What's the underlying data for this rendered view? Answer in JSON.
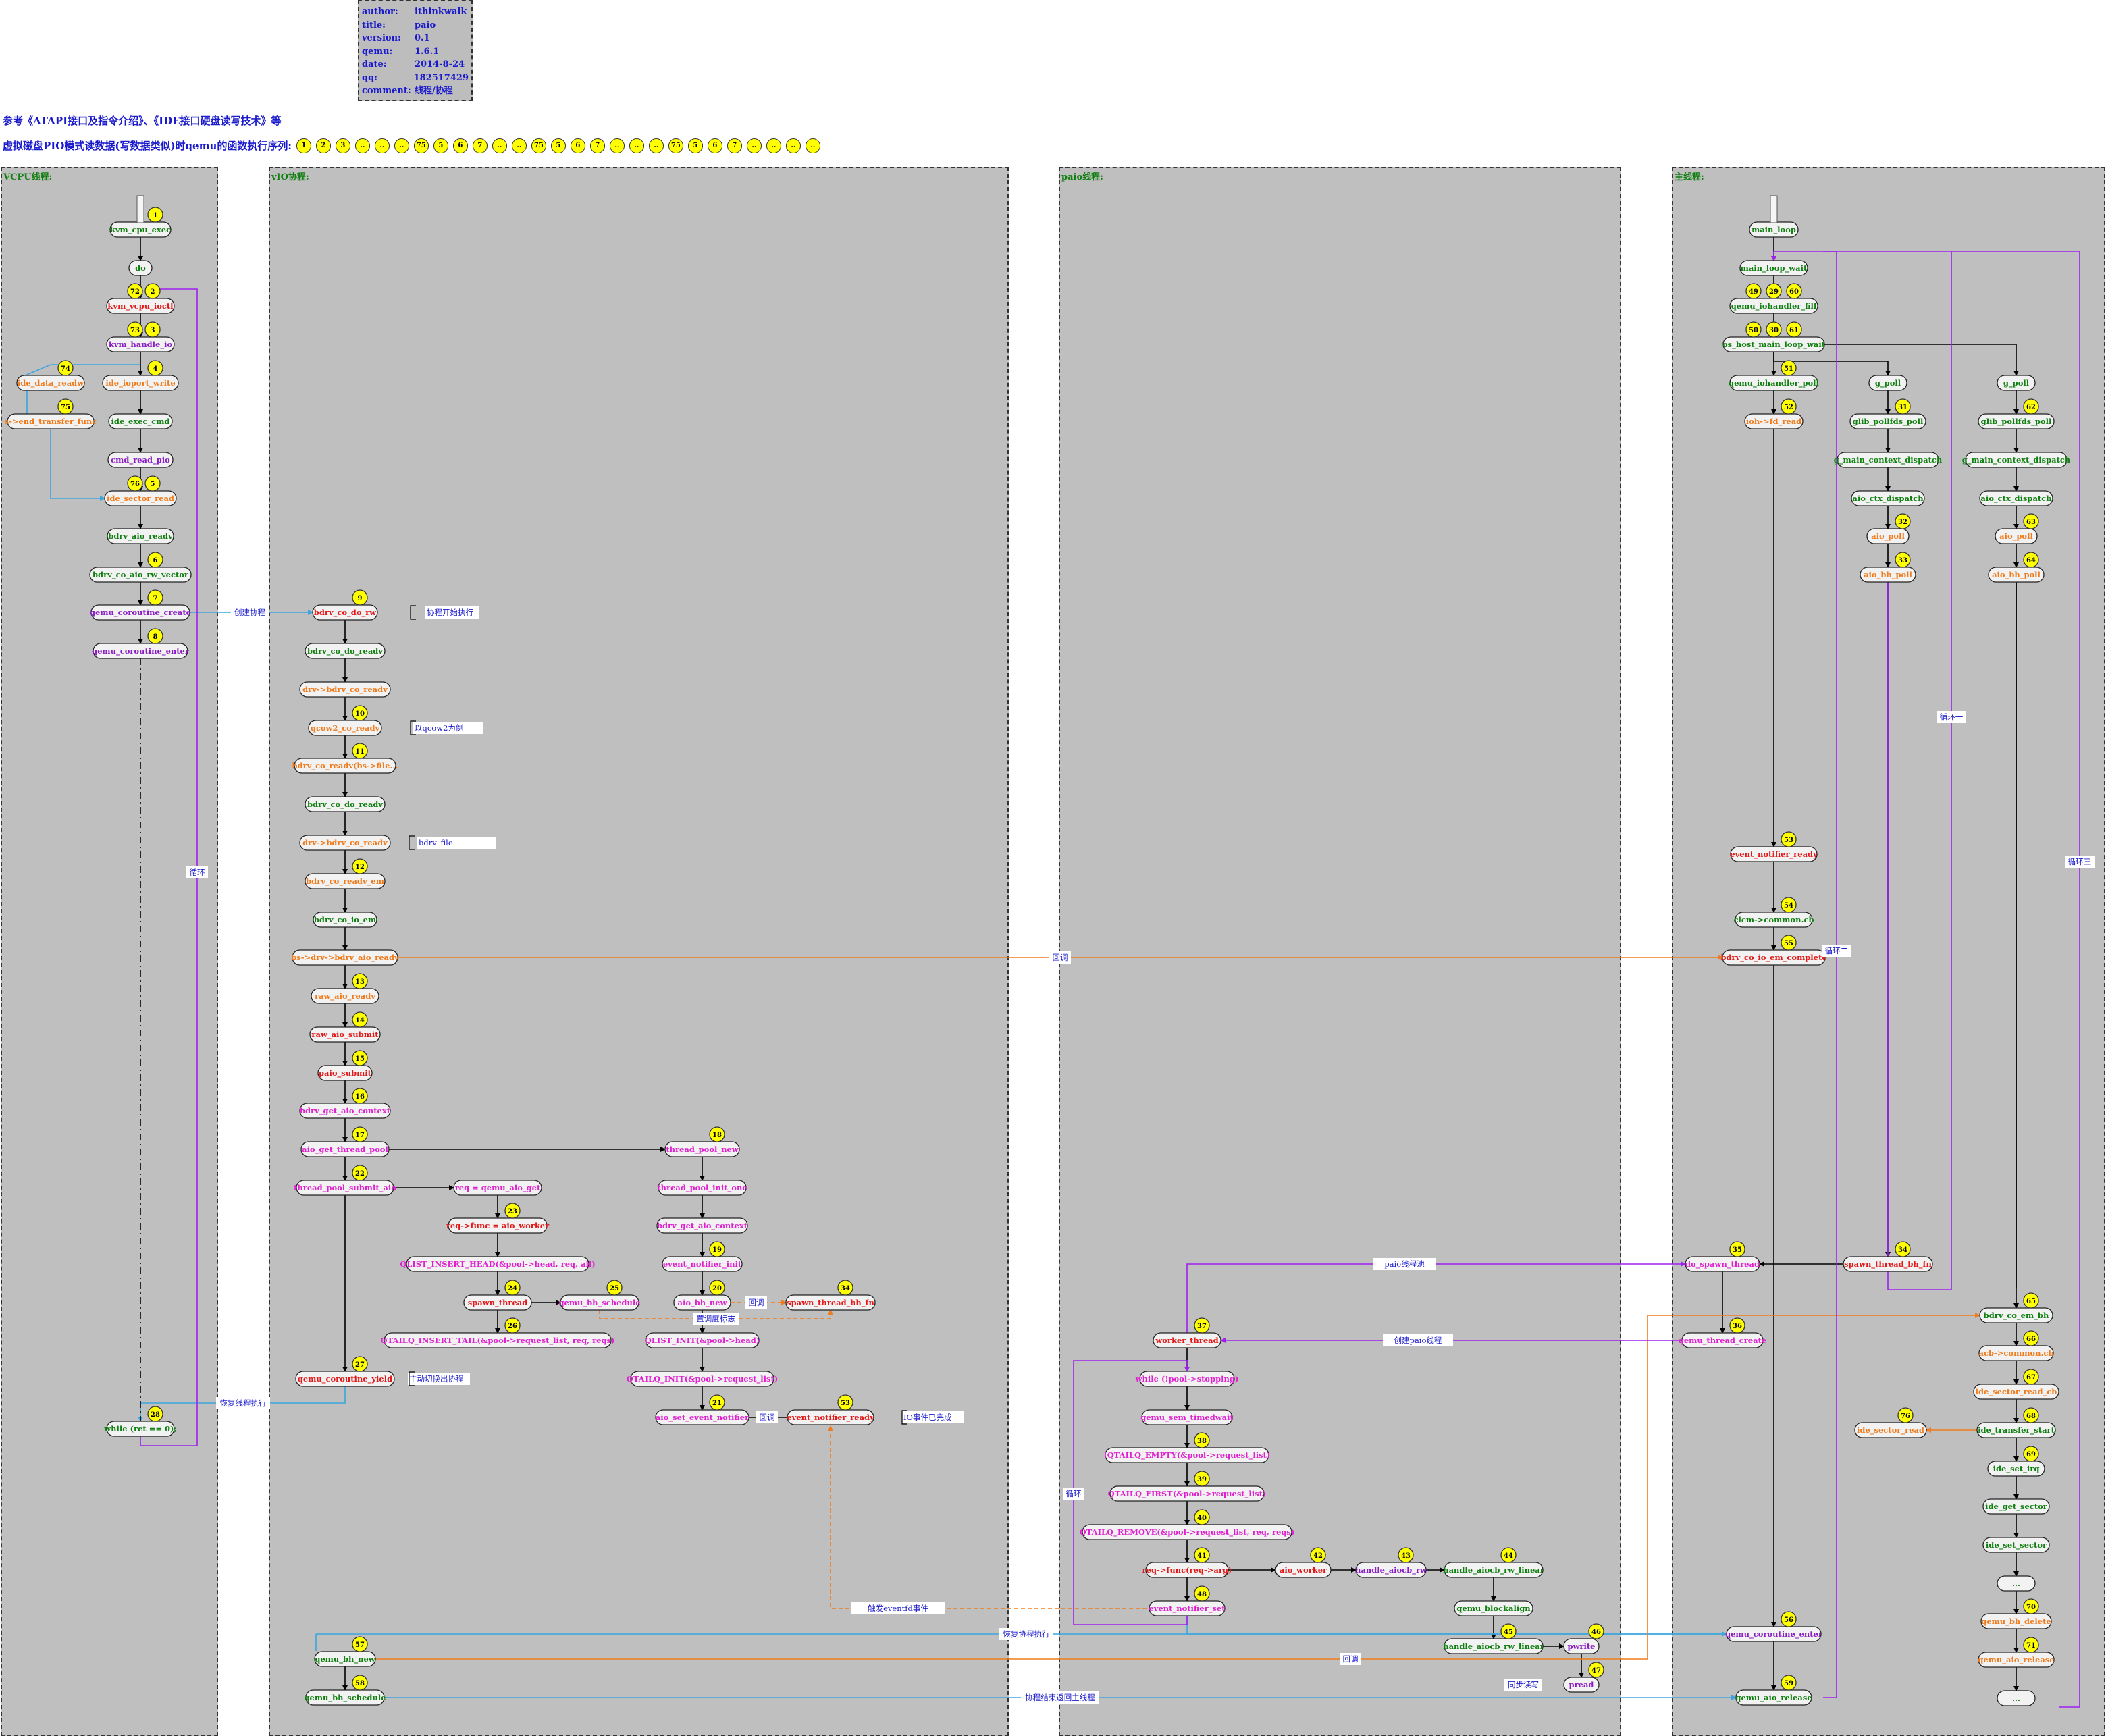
{
  "info": {
    "rows": [
      {
        "key": "author:",
        "value": "ithinkwalk"
      },
      {
        "key": "title:",
        "value": "paio"
      },
      {
        "key": "version:",
        "value": "0.1"
      },
      {
        "key": "qemu:",
        "value": "1.6.1"
      },
      {
        "key": "date:",
        "value": "2014-8-24"
      },
      {
        "key": "qq:",
        "value": "182517429"
      },
      {
        "key": "comment:",
        "value": "线程/协程"
      }
    ]
  },
  "reference_text": "参考《ATAPI接口及指令介绍》、《IDE接口硬盘读写技术》等",
  "sequence_label": "虚拟磁盘PIO模式读数据(写数据类似)时qemu的函数执行序列:",
  "sequence": [
    "1",
    "2",
    "3",
    "..",
    "..",
    "..",
    "75",
    "5",
    "6",
    "7",
    "..",
    "..",
    "75",
    "5",
    "6",
    "7",
    "..",
    "..",
    "..",
    "75",
    "5",
    "6",
    "7",
    "..",
    "..",
    "..",
    ".."
  ],
  "lanes": [
    {
      "id": "vcpu",
      "title": "VCPU线程:"
    },
    {
      "id": "vio",
      "title": "vIO协程:"
    },
    {
      "id": "paio",
      "title": "paio线程:"
    },
    {
      "id": "main",
      "title": "主线程:"
    }
  ],
  "colors": {
    "green": "#0f7f0f",
    "red": "#e31919",
    "orange": "#f07b1c",
    "purple": "#8a1ec4",
    "magenta": "#e01fd0",
    "blue": "#1a1acc",
    "cyan_edge": "#3aa6df",
    "badge": "#ffff00",
    "lane_bg": "#bfbfbf"
  },
  "nodes": [
    {
      "id": "kvm_cpu_exec",
      "text": "kvm_cpu_exec",
      "c": "green",
      "badge": "1"
    },
    {
      "id": "do",
      "text": "do",
      "c": "green"
    },
    {
      "id": "kvm_vcpu_ioctl",
      "text": "kvm_vcpu_ioctl",
      "c": "red",
      "badge": "2",
      "badge2": "72"
    },
    {
      "id": "kvm_handle_io",
      "text": "kvm_handle_io",
      "c": "purple",
      "badge": "3",
      "badge2": "73"
    },
    {
      "id": "ide_ioport_write",
      "text": "ide_ioport_write",
      "c": "orange",
      "badge": "4"
    },
    {
      "id": "ide_data_readw",
      "text": "ide_data_readw",
      "c": "orange",
      "badge": "74"
    },
    {
      "id": "s_end_transfer_func",
      "text": "s->end_transfer_func",
      "c": "orange",
      "badge": "75"
    },
    {
      "id": "ide_exec_cmd",
      "text": "ide_exec_cmd",
      "c": "green"
    },
    {
      "id": "cmd_read_pio",
      "text": "cmd_read_pio",
      "c": "purple"
    },
    {
      "id": "ide_sector_read",
      "text": "ide_sector_read",
      "c": "orange",
      "badge": "5",
      "badge2": "76"
    },
    {
      "id": "bdrv_aio_readv",
      "text": "bdrv_aio_readv",
      "c": "green"
    },
    {
      "id": "bdrv_co_aio_rw_vector",
      "text": "bdrv_co_aio_rw_vector",
      "c": "green",
      "badge": "6"
    },
    {
      "id": "qemu_coroutine_create",
      "text": "qemu_coroutine_create",
      "c": "purple",
      "badge": "7"
    },
    {
      "id": "qemu_coroutine_enter",
      "text": "qemu_coroutine_enter",
      "c": "purple",
      "badge": "8"
    },
    {
      "id": "while_ret",
      "text": "while (ret == 0);",
      "c": "green",
      "badge": "28"
    },
    {
      "id": "bdrv_co_do_rw",
      "text": "bdrv_co_do_rw",
      "c": "red",
      "badge": "9"
    },
    {
      "id": "bdrv_co_do_readv",
      "text": "bdrv_co_do_readv",
      "c": "green"
    },
    {
      "id": "drv_bdrv_co_readv",
      "text": "drv->bdrv_co_readv",
      "c": "orange"
    },
    {
      "id": "qcow2_co_readv",
      "text": "qcow2_co_readv",
      "c": "orange",
      "badge": "10"
    },
    {
      "id": "bdrv_co_readv_file",
      "text": "bdrv_co_readv(bs->file...",
      "c": "orange",
      "badge": "11"
    },
    {
      "id": "bdrv_co_do_readv2",
      "text": "bdrv_co_do_readv",
      "c": "green"
    },
    {
      "id": "drv_bdrv_co_readv2",
      "text": "drv->bdrv_co_readv",
      "c": "orange"
    },
    {
      "id": "bdrv_co_readv_em",
      "text": "bdrv_co_readv_em",
      "c": "orange",
      "badge": "12"
    },
    {
      "id": "bdrv_co_io_em",
      "text": "bdrv_co_io_em",
      "c": "green"
    },
    {
      "id": "bs_drv_bdrv_aio_readv",
      "text": "bs->drv->bdrv_aio_readv",
      "c": "orange"
    },
    {
      "id": "raw_aio_readv",
      "text": "raw_aio_readv",
      "c": "orange",
      "badge": "13"
    },
    {
      "id": "raw_aio_submit",
      "text": "raw_aio_submit",
      "c": "red",
      "badge": "14"
    },
    {
      "id": "paio_submit",
      "text": "paio_submit",
      "c": "red",
      "badge": "15"
    },
    {
      "id": "bdrv_get_aio_context",
      "text": "bdrv_get_aio_context",
      "c": "magenta",
      "badge": "16"
    },
    {
      "id": "aio_get_thread_pool",
      "text": "aio_get_thread_pool",
      "c": "magenta",
      "badge": "17"
    },
    {
      "id": "thread_pool_submit_aio",
      "text": "thread_pool_submit_aio",
      "c": "magenta",
      "badge": "22"
    },
    {
      "id": "req_qemu_aio_get",
      "text": "req = qemu_aio_get",
      "c": "magenta"
    },
    {
      "id": "req_func_aio_worker",
      "text": "req->func = aio_worker",
      "c": "red",
      "badge": "23"
    },
    {
      "id": "qlist_insert_head",
      "text": "QLIST_INSERT_HEAD(&pool->head, req, all)",
      "c": "magenta"
    },
    {
      "id": "spawn_thread",
      "text": "spawn_thread",
      "c": "red",
      "badge": "24"
    },
    {
      "id": "qemu_bh_schedule",
      "text": "qemu_bh_schedule",
      "c": "magenta",
      "badge": "25"
    },
    {
      "id": "qtailq_insert_tail",
      "text": "QTAILQ_INSERT_TAIL(&pool->request_list, req, reqs)",
      "c": "magenta",
      "badge": "26"
    },
    {
      "id": "qemu_coroutine_yield",
      "text": "qemu_coroutine_yield",
      "c": "red",
      "badge": "27"
    },
    {
      "id": "thread_pool_new",
      "text": "thread_pool_new",
      "c": "magenta",
      "badge": "18"
    },
    {
      "id": "thread_pool_init_one",
      "text": "thread_pool_init_one",
      "c": "magenta"
    },
    {
      "id": "bdrv_get_aio_context2",
      "text": "bdrv_get_aio_context",
      "c": "magenta"
    },
    {
      "id": "event_notifier_init",
      "text": "event_notifier_init",
      "c": "magenta",
      "badge": "19"
    },
    {
      "id": "aio_bh_new",
      "text": "aio_bh_new",
      "c": "magenta",
      "badge": "20"
    },
    {
      "id": "spawn_thread_bh_fn",
      "text": "spawn_thread_bh_fn",
      "c": "red",
      "badge": "34"
    },
    {
      "id": "qlist_init",
      "text": "QLIST_INIT(&pool->head)",
      "c": "magenta"
    },
    {
      "id": "qtailq_init",
      "text": "QTAILQ_INIT(&pool->request_list)",
      "c": "magenta"
    },
    {
      "id": "aio_set_event_notifier",
      "text": "aio_set_event_notifier",
      "c": "magenta",
      "badge": "21"
    },
    {
      "id": "event_notifier_ready",
      "text": "event_notifier_ready",
      "c": "red",
      "badge": "53"
    },
    {
      "id": "qemu_bh_new",
      "text": "qemu_bh_new",
      "c": "green",
      "badge": "57"
    },
    {
      "id": "qemu_bh_schedule2",
      "text": "qemu_bh_schedule",
      "c": "green",
      "badge": "58"
    },
    {
      "id": "worker_thread",
      "text": "worker_thread",
      "c": "red",
      "badge": "37"
    },
    {
      "id": "while_stopping",
      "text": "while (!pool->stopping)",
      "c": "magenta"
    },
    {
      "id": "qemu_sem_timedwait",
      "text": "qemu_sem_timedwait",
      "c": "magenta"
    },
    {
      "id": "qtailq_empty",
      "text": "!QTAILQ_EMPTY(&pool->request_list)",
      "c": "magenta",
      "badge": "38"
    },
    {
      "id": "qtailq_first",
      "text": "QTAILQ_FIRST(&pool->request_list)",
      "c": "magenta",
      "badge": "39"
    },
    {
      "id": "qtailq_remove",
      "text": "QTAILQ_REMOVE(&pool->request_list, req, reqs)",
      "c": "magenta",
      "badge": "40"
    },
    {
      "id": "req_func_arg",
      "text": "req->func(req->arg)",
      "c": "red",
      "badge": "41"
    },
    {
      "id": "aio_worker",
      "text": "aio_worker",
      "c": "red",
      "badge": "42"
    },
    {
      "id": "handle_aiocb_rw",
      "text": "handle_aiocb_rw",
      "c": "purple",
      "badge": "43"
    },
    {
      "id": "handle_aiocb_rw_linear",
      "text": "handle_aiocb_rw_linear",
      "c": "green",
      "badge": "44"
    },
    {
      "id": "qemu_blockalign",
      "text": "qemu_blockalign",
      "c": "green"
    },
    {
      "id": "handle_aiocb_rw_linear2",
      "text": "handle_aiocb_rw_linear",
      "c": "green",
      "badge": "45"
    },
    {
      "id": "pwrite",
      "text": "pwrite",
      "c": "purple",
      "badge": "46"
    },
    {
      "id": "pread",
      "text": "pread",
      "c": "purple",
      "badge": "47"
    },
    {
      "id": "event_notifier_set",
      "text": "event_notifier_set",
      "c": "magenta",
      "badge": "48"
    },
    {
      "id": "main_loop",
      "text": "main_loop",
      "c": "green"
    },
    {
      "id": "main_loop_wait",
      "text": "main_loop_wait",
      "c": "green"
    },
    {
      "id": "qemu_iohandler_fill",
      "text": "qemu_iohandler_fill",
      "c": "green",
      "badge": "29",
      "badge2": "49",
      "badge3": "60"
    },
    {
      "id": "os_host_main_loop_wait",
      "text": "os_host_main_loop_wait",
      "c": "green",
      "badge": "30",
      "badge2": "50",
      "badge3": "61"
    },
    {
      "id": "qemu_iohandler_poll",
      "text": "qemu_iohandler_poll",
      "c": "green",
      "badge": "51"
    },
    {
      "id": "ioh_fd_read",
      "text": "ioh->fd_read",
      "c": "orange",
      "badge": "52"
    },
    {
      "id": "event_notifier_ready2",
      "text": "event_notifier_ready",
      "c": "red",
      "badge": "53"
    },
    {
      "id": "clcm_common_cb",
      "text": "clcm->common.cb",
      "c": "green",
      "badge": "54"
    },
    {
      "id": "bdrv_co_io_em_complete",
      "text": "bdrv_co_io_em_complete",
      "c": "red",
      "badge": "55"
    },
    {
      "id": "do_spawn_thread",
      "text": "do_spawn_thread",
      "c": "magenta",
      "badge": "35"
    },
    {
      "id": "qemu_thread_create",
      "text": "qemu_thread_create",
      "c": "magenta",
      "badge": "36"
    },
    {
      "id": "qemu_coroutine_enter2",
      "text": "qemu_coroutine_enter",
      "c": "purple",
      "badge": "56"
    },
    {
      "id": "qemu_aio_release",
      "text": "qemu_aio_release",
      "c": "green",
      "badge": "59"
    },
    {
      "id": "g_poll_a",
      "text": "g_poll",
      "c": "green"
    },
    {
      "id": "glib_pollfds_poll_a",
      "text": "glib_pollfds_poll",
      "c": "green",
      "badge": "31"
    },
    {
      "id": "g_main_context_dispatch_a",
      "text": "g_main_context_dispatch",
      "c": "green"
    },
    {
      "id": "aio_ctx_dispatch_a",
      "text": "aio_ctx_dispatch",
      "c": "green"
    },
    {
      "id": "aio_poll_a",
      "text": "aio_poll",
      "c": "orange",
      "badge": "32"
    },
    {
      "id": "aio_bh_poll_a",
      "text": "aio_bh_poll",
      "c": "orange",
      "badge": "33"
    },
    {
      "id": "spawn_thread_bh_fn2",
      "text": "spawn_thread_bh_fn",
      "c": "red",
      "badge": "34"
    },
    {
      "id": "g_poll_b",
      "text": "g_poll",
      "c": "green"
    },
    {
      "id": "glib_pollfds_poll_b",
      "text": "glib_pollfds_poll",
      "c": "green",
      "badge": "62"
    },
    {
      "id": "g_main_context_dispatch_b",
      "text": "g_main_context_dispatch",
      "c": "green"
    },
    {
      "id": "aio_ctx_dispatch_b",
      "text": "aio_ctx_dispatch",
      "c": "green"
    },
    {
      "id": "aio_poll_b",
      "text": "aio_poll",
      "c": "orange",
      "badge": "63"
    },
    {
      "id": "aio_bh_poll_b",
      "text": "aio_bh_poll",
      "c": "orange",
      "badge": "64"
    },
    {
      "id": "bdrv_co_em_bh",
      "text": "bdrv_co_em_bh",
      "c": "green",
      "badge": "65"
    },
    {
      "id": "acb_common_cb",
      "text": "acb->common.cb",
      "c": "orange",
      "badge": "66"
    },
    {
      "id": "ide_sector_read_cb",
      "text": "ide_sector_read_cb",
      "c": "orange",
      "badge": "67"
    },
    {
      "id": "ide_transfer_start",
      "text": "ide_transfer_start",
      "c": "green",
      "badge": "68"
    },
    {
      "id": "ide_sector_read2",
      "text": "ide_sector_read",
      "c": "orange",
      "badge": "76"
    },
    {
      "id": "ide_set_irq",
      "text": "ide_set_irq",
      "c": "green",
      "badge": "69"
    },
    {
      "id": "ide_get_sector",
      "text": "ide_get_sector",
      "c": "green"
    },
    {
      "id": "ide_set_sector",
      "text": "ide_set_sector",
      "c": "green"
    },
    {
      "id": "ellipsis_a",
      "text": "...",
      "c": "green"
    },
    {
      "id": "qemu_bh_delete",
      "text": "qemu_bh_delete",
      "c": "orange",
      "badge": "70"
    },
    {
      "id": "qemu_aio_release2",
      "text": "qemu_aio_release",
      "c": "orange",
      "badge": "71"
    },
    {
      "id": "ellipsis_b",
      "text": "...",
      "c": "green"
    }
  ],
  "labels": [
    {
      "id": "create_coroutine",
      "text": "创建协程"
    },
    {
      "id": "coroutine_start",
      "text": "协程开始执行"
    },
    {
      "id": "take_qcow2",
      "text": "以qcow2为例"
    },
    {
      "id": "bdrv_file",
      "text": "bdrv_file"
    },
    {
      "id": "loop_vcpu",
      "text": "循环"
    },
    {
      "id": "resume_thread",
      "text": "恢复线程执行"
    },
    {
      "id": "yield_note",
      "text": "主动切换出协程"
    },
    {
      "id": "callback1",
      "text": "回调"
    },
    {
      "id": "schedule_mark",
      "text": "置调度标志"
    },
    {
      "id": "callback2",
      "text": "回调"
    },
    {
      "id": "io_done",
      "text": "IO事件已完成"
    },
    {
      "id": "callback_em",
      "text": "回调"
    },
    {
      "id": "paio_pool",
      "text": "paio线程池"
    },
    {
      "id": "create_paio",
      "text": "创建paio线程"
    },
    {
      "id": "loop_paio",
      "text": "循环"
    },
    {
      "id": "trigger_eventfd",
      "text": "触发eventfd事件"
    },
    {
      "id": "resume_coroutine",
      "text": "恢复协程执行"
    },
    {
      "id": "callback3",
      "text": "回调"
    },
    {
      "id": "sync_rw",
      "text": "同步读写"
    },
    {
      "id": "coroutine_return",
      "text": "协程结束返回主线程"
    },
    {
      "id": "loop_one",
      "text": "循环一"
    },
    {
      "id": "loop_two",
      "text": "循环二"
    },
    {
      "id": "loop_three",
      "text": "循环三"
    }
  ]
}
